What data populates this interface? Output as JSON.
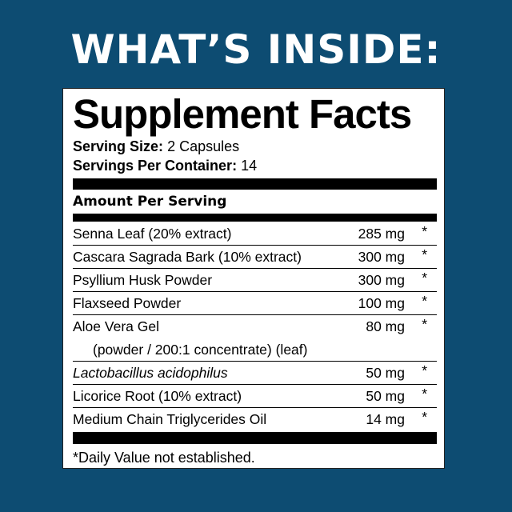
{
  "headline": "WHAT’S INSIDE:",
  "colors": {
    "background": "#0d4c72",
    "panel": "#ffffff",
    "text": "#000000"
  },
  "facts": {
    "title": "Supplement Facts",
    "serving_size_label": "Serving Size:",
    "serving_size_value": "2 Capsules",
    "servings_label": "Servings Per Container:",
    "servings_value": "14",
    "amount_header": "Amount Per Serving",
    "rows": [
      {
        "name": "Senna Leaf (20% extract)",
        "amount": "285 mg",
        "mark": "*"
      },
      {
        "name": "Cascara Sagrada Bark (10% extract)",
        "amount": "300 mg",
        "mark": "*"
      },
      {
        "name": "Psyllium Husk Powder",
        "amount": "300 mg",
        "mark": "*"
      },
      {
        "name": "Flaxseed Powder",
        "amount": "100 mg",
        "mark": "*"
      },
      {
        "name": "Aloe Vera Gel",
        "sub": "(powder / 200:1 concentrate) (leaf)",
        "amount": "80 mg",
        "mark": "*"
      },
      {
        "name": "Lactobacillus acidophilus",
        "amount": "50 mg",
        "mark": "*",
        "italic": true
      },
      {
        "name": "Licorice Root (10% extract)",
        "amount": "50 mg",
        "mark": "*"
      },
      {
        "name": "Medium Chain Triglycerides Oil",
        "amount": "14 mg",
        "mark": "*"
      }
    ],
    "footnote": "*Daily Value not established."
  }
}
